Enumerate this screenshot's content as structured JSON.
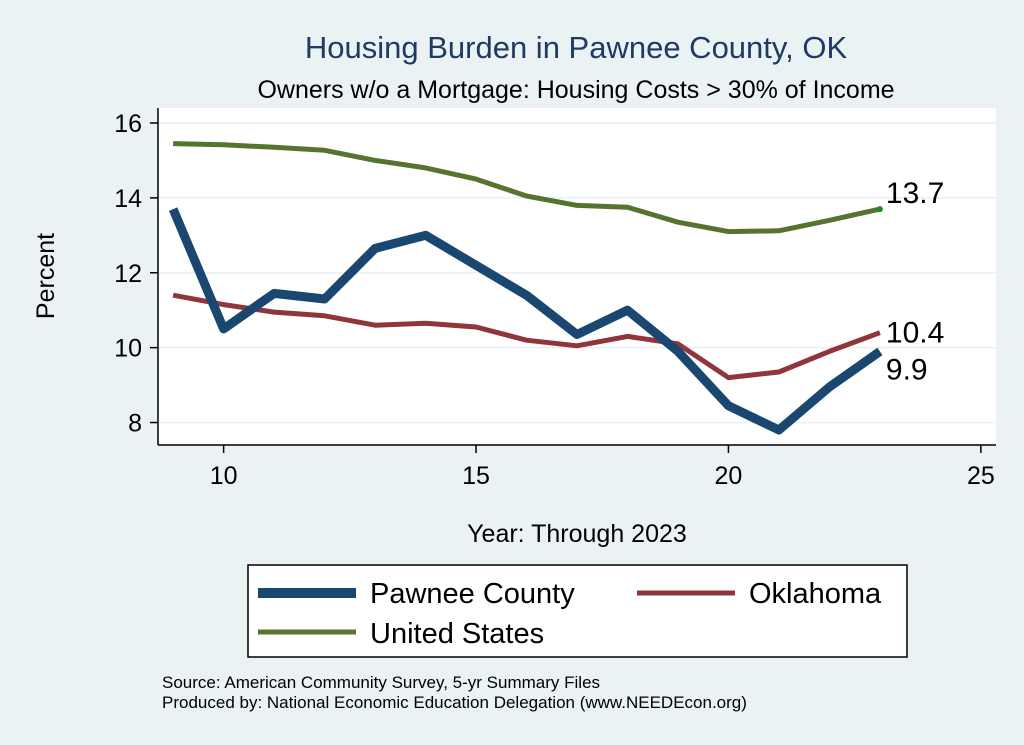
{
  "chart_data": {
    "type": "line",
    "title": "Housing Burden in Pawnee County, OK",
    "subtitle": "Owners w/o a Mortgage: Housing Costs > 30% of Income",
    "xlabel": "Year: Through 2023",
    "ylabel": "Percent",
    "xlim": [
      8.7,
      25.3
    ],
    "ylim": [
      7.4,
      16.4
    ],
    "x_ticks": [
      10,
      15,
      20,
      25
    ],
    "y_ticks": [
      8,
      10,
      12,
      14,
      16
    ],
    "grid": true,
    "legend_position": "bottom",
    "x": [
      9,
      10,
      11,
      12,
      13,
      14,
      15,
      16,
      17,
      18,
      19,
      20,
      21,
      22,
      23
    ],
    "series": [
      {
        "name": "Pawnee County",
        "color": "#1a476f",
        "values": [
          13.7,
          10.5,
          11.45,
          11.3,
          12.65,
          13.0,
          12.2,
          11.4,
          10.35,
          11.0,
          9.9,
          8.45,
          7.8,
          8.95,
          9.9
        ],
        "end_label": "9.9"
      },
      {
        "name": "Oklahoma",
        "color": "#90353b",
        "values": [
          11.4,
          11.15,
          10.95,
          10.85,
          10.6,
          10.65,
          10.55,
          10.2,
          10.05,
          10.3,
          10.1,
          9.2,
          9.35,
          9.9,
          10.4
        ],
        "end_label": "10.4"
      },
      {
        "name": "United States",
        "color": "#55752f",
        "values": [
          15.45,
          15.42,
          15.35,
          15.27,
          15.0,
          14.8,
          14.5,
          14.05,
          13.8,
          13.75,
          13.35,
          13.1,
          13.12,
          13.4,
          13.7
        ],
        "end_label": "13.7"
      }
    ]
  },
  "footer": {
    "source": "Source: American Community Survey, 5-yr Summary Files",
    "produced": "Produced by: National Economic Education Delegation (www.NEEDEcon.org)"
  }
}
